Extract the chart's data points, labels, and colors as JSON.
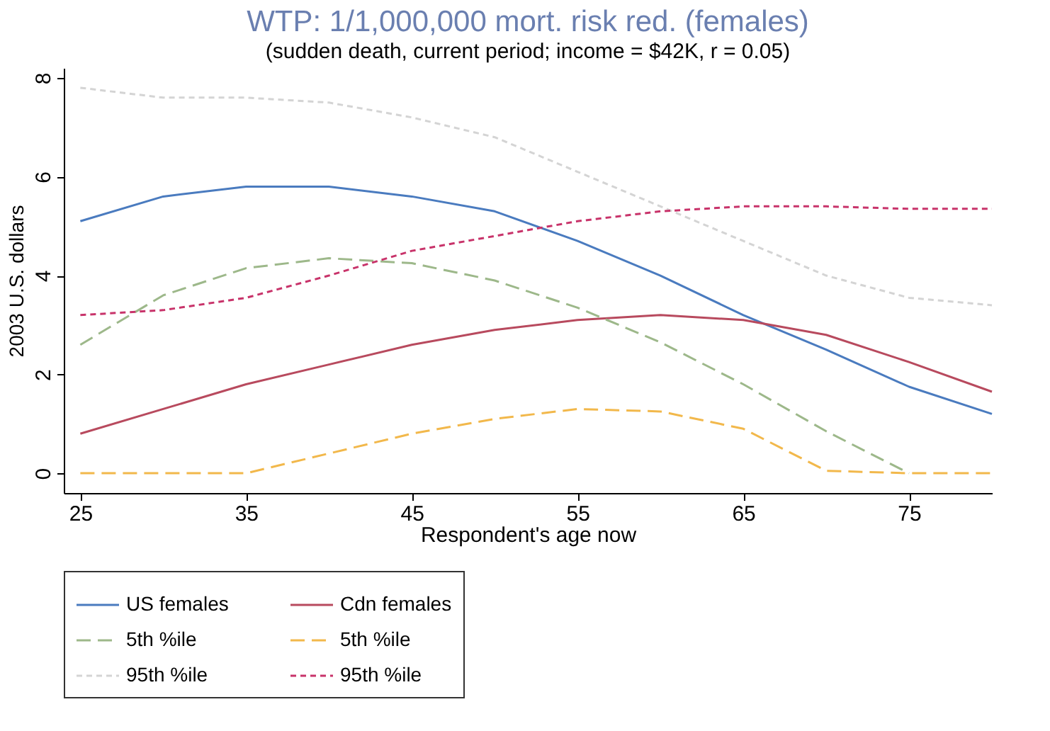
{
  "chart_data": {
    "type": "line",
    "title": "WTP: 1/1,000,000 mort. risk red. (females)",
    "subtitle": "(sudden death, current period; income = $42K, r = 0.05)",
    "xlabel": "Respondent's age now",
    "ylabel": "2003 U.S. dollars",
    "x": [
      25,
      30,
      35,
      40,
      45,
      50,
      55,
      60,
      65,
      70,
      75,
      80
    ],
    "xlim": [
      24,
      80
    ],
    "xticks": [
      25,
      35,
      45,
      55,
      65,
      75
    ],
    "ylim": [
      -0.4,
      8.2
    ],
    "yticks": [
      0,
      2,
      4,
      6,
      8
    ],
    "grid": false,
    "legend": "bottom",
    "marker": "none",
    "series": [
      {
        "name": "US females",
        "color": "#4a7bbf",
        "line_style": "solid",
        "values": [
          5.1,
          5.6,
          5.8,
          5.8,
          5.6,
          5.3,
          4.7,
          4.0,
          3.2,
          2.5,
          1.75,
          1.2
        ]
      },
      {
        "name": "Cdn females",
        "color": "#b84a5e",
        "line_style": "solid",
        "values": [
          0.8,
          1.3,
          1.8,
          2.2,
          2.6,
          2.9,
          3.1,
          3.2,
          3.1,
          2.8,
          2.25,
          1.65
        ]
      },
      {
        "name": " 5th %ile",
        "color": "#9db88a",
        "line_style": "dashed",
        "values": [
          2.6,
          3.6,
          4.15,
          4.35,
          4.25,
          3.9,
          3.35,
          2.65,
          1.8,
          0.85,
          0.0,
          null
        ]
      },
      {
        "name": " 5th %ile",
        "color": "#f2b84b",
        "line_style": "dashed",
        "values": [
          0.0,
          0.0,
          0.0,
          0.4,
          0.8,
          1.1,
          1.3,
          1.25,
          0.9,
          0.05,
          0.0,
          0.0
        ]
      },
      {
        "name": "95th %ile",
        "color": "#d4d4d4",
        "line_style": "dotted",
        "values": [
          7.8,
          7.6,
          7.6,
          7.5,
          7.2,
          6.8,
          6.1,
          5.4,
          4.7,
          4.0,
          3.55,
          3.4
        ]
      },
      {
        "name": "95th %ile",
        "color": "#c8336a",
        "line_style": "dotted",
        "values": [
          3.2,
          3.3,
          3.55,
          4.0,
          4.5,
          4.8,
          5.1,
          5.3,
          5.4,
          5.4,
          5.35,
          5.35
        ]
      }
    ]
  }
}
